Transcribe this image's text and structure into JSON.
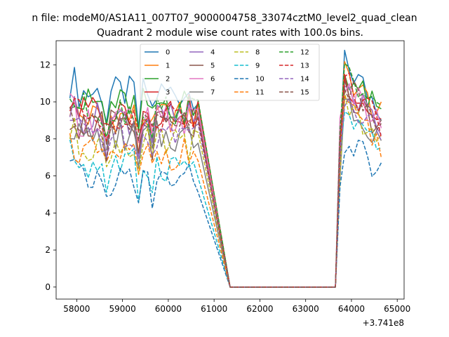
{
  "chart_data": {
    "type": "line",
    "suptitle": "n file: modeM0/AS1A11_007T07_9000004758_33074cztM0_level2_quad_clean",
    "title": "Quadrant 2 module wise count rates with 100.0s bins.",
    "xlabel": "",
    "ylabel": "",
    "x_offset_label": "+3.741e8",
    "xlim": [
      57550,
      65150
    ],
    "ylim": [
      -0.65,
      13.3
    ],
    "xticks": [
      58000,
      59000,
      60000,
      61000,
      62000,
      63000,
      64000,
      65000
    ],
    "xtick_labels": [
      "58000",
      "59000",
      "60000",
      "61000",
      "62000",
      "63000",
      "64000",
      "65000"
    ],
    "yticks": [
      0,
      2,
      4,
      6,
      8,
      10,
      12
    ],
    "ytick_labels": [
      "0",
      "2",
      "4",
      "6",
      "8",
      "10",
      "12"
    ],
    "grid": false,
    "legend_placement": "upper center",
    "x": {
      "start": 57850,
      "step": 100,
      "count": 29,
      "gap_start": 61350,
      "gap_end": 63650,
      "resume": 63750,
      "resume_count": 10
    },
    "series": [
      {
        "name": "0",
        "color": "#1f77b4",
        "dash": "solid",
        "base": 10.5,
        "post_base": 11.5
      },
      {
        "name": "1",
        "color": "#ff7f0e",
        "dash": "solid",
        "base": 9.2,
        "post_base": 11.0
      },
      {
        "name": "2",
        "color": "#2ca02c",
        "dash": "solid",
        "base": 9.9,
        "post_base": 11.0
      },
      {
        "name": "3",
        "color": "#d62728",
        "dash": "solid",
        "base": 9.5,
        "post_base": 10.6
      },
      {
        "name": "4",
        "color": "#9467bd",
        "dash": "solid",
        "base": 9.1,
        "post_base": 10.3
      },
      {
        "name": "5",
        "color": "#8c564b",
        "dash": "solid",
        "base": 8.7,
        "post_base": 10.0
      },
      {
        "name": "6",
        "color": "#e377c2",
        "dash": "solid",
        "base": 9.0,
        "post_base": 10.2
      },
      {
        "name": "7",
        "color": "#7f7f7f",
        "dash": "solid",
        "base": 8.1,
        "post_base": 9.5
      },
      {
        "name": "8",
        "color": "#bcbd22",
        "dash": "dashed",
        "base": 7.7,
        "post_base": 9.1
      },
      {
        "name": "9",
        "color": "#17becf",
        "dash": "dashed",
        "base": 6.6,
        "post_base": 8.4
      },
      {
        "name": "10",
        "color": "#1f77b4",
        "dash": "dashed",
        "base": 5.8,
        "post_base": 7.2
      },
      {
        "name": "11",
        "color": "#ff7f0e",
        "dash": "dashed",
        "base": 7.2,
        "post_base": 8.9
      },
      {
        "name": "12",
        "color": "#2ca02c",
        "dash": "dashed",
        "base": 9.6,
        "post_base": 11.0
      },
      {
        "name": "13",
        "color": "#d62728",
        "dash": "dashed",
        "base": 9.3,
        "post_base": 10.5
      },
      {
        "name": "14",
        "color": "#9467bd",
        "dash": "dashed",
        "base": 8.4,
        "post_base": 9.8
      },
      {
        "name": "15",
        "color": "#8c564b",
        "dash": "dashed",
        "base": 8.9,
        "post_base": 10.3
      }
    ]
  }
}
